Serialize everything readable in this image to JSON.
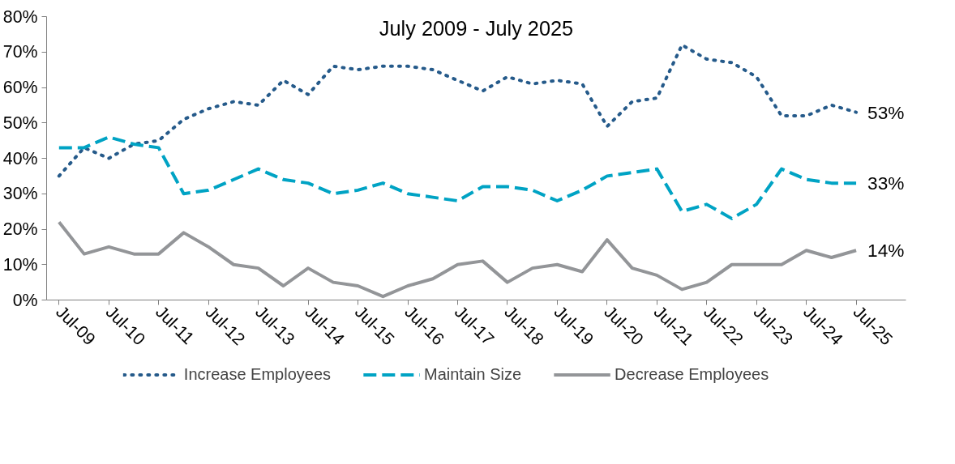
{
  "chart_data": {
    "type": "line",
    "title": "July 2009 - July 2025",
    "x": [
      "2009-07",
      "2010-01",
      "2010-07",
      "2011-01",
      "2011-07",
      "2012-01",
      "2012-07",
      "2013-01",
      "2013-07",
      "2014-01",
      "2014-07",
      "2015-01",
      "2015-07",
      "2016-01",
      "2016-07",
      "2017-01",
      "2017-07",
      "2018-01",
      "2018-07",
      "2019-01",
      "2019-07",
      "2020-01",
      "2020-07",
      "2021-01",
      "2021-07",
      "2022-01",
      "2022-07",
      "2023-01",
      "2023-07",
      "2024-01",
      "2024-07",
      "2025-01",
      "2025-07"
    ],
    "series": [
      {
        "name": "Increase Employees",
        "color": "#255a8a",
        "line_style": "dotted",
        "values": [
          35,
          43,
          40,
          44,
          45,
          51,
          54,
          56,
          55,
          62,
          58,
          66,
          65,
          66,
          66,
          65,
          62,
          59,
          63,
          61,
          62,
          61,
          49,
          56,
          57,
          72,
          68,
          67,
          63,
          52,
          52,
          55,
          53
        ],
        "value_labels": [
          null,
          null,
          null,
          null,
          null,
          null,
          null,
          null,
          null,
          null,
          null,
          null,
          null,
          null,
          null,
          null,
          null,
          null,
          null,
          null,
          null,
          null,
          null,
          null,
          null,
          null,
          null,
          null,
          null,
          null,
          null,
          null,
          "53%"
        ]
      },
      {
        "name": "Maintain Size",
        "color": "#00a3c4",
        "line_style": "dashed",
        "values": [
          43,
          43,
          46,
          44,
          43,
          30,
          31,
          34,
          37,
          34,
          33,
          30,
          31,
          33,
          30,
          29,
          28,
          32,
          32,
          31,
          28,
          31,
          35,
          36,
          37,
          25,
          27,
          23,
          27,
          37,
          34,
          33,
          33
        ],
        "value_labels": [
          null,
          null,
          null,
          null,
          null,
          null,
          null,
          null,
          null,
          null,
          null,
          null,
          null,
          null,
          null,
          null,
          null,
          null,
          null,
          null,
          null,
          null,
          null,
          null,
          null,
          null,
          null,
          null,
          null,
          null,
          null,
          null,
          "33%"
        ]
      },
      {
        "name": "Decrease Employees",
        "color": "#939598",
        "line_style": "solid",
        "values": [
          22,
          13,
          15,
          13,
          13,
          19,
          15,
          10,
          9,
          4,
          9,
          5,
          4,
          1,
          4,
          6,
          10,
          11,
          5,
          9,
          10,
          8,
          17,
          9,
          7,
          3,
          5,
          10,
          10,
          10,
          14,
          12,
          14
        ],
        "value_labels": [
          null,
          null,
          null,
          null,
          null,
          null,
          null,
          null,
          null,
          null,
          null,
          null,
          null,
          null,
          null,
          null,
          null,
          null,
          null,
          null,
          null,
          null,
          null,
          null,
          null,
          null,
          null,
          null,
          null,
          null,
          null,
          null,
          "14%"
        ]
      }
    ],
    "xlim": [
      "2009-04",
      "2026-07"
    ],
    "xticks": [
      {
        "value": "2009-07",
        "label": "Jul-09"
      },
      {
        "value": "2010-07",
        "label": "Jul-10"
      },
      {
        "value": "2011-07",
        "label": "Jul-11"
      },
      {
        "value": "2012-07",
        "label": "Jul-12"
      },
      {
        "value": "2013-07",
        "label": "Jul-13"
      },
      {
        "value": "2014-07",
        "label": "Jul-14"
      },
      {
        "value": "2015-07",
        "label": "Jul-15"
      },
      {
        "value": "2016-07",
        "label": "Jul-16"
      },
      {
        "value": "2017-07",
        "label": "Jul-17"
      },
      {
        "value": "2018-07",
        "label": "Jul-18"
      },
      {
        "value": "2019-07",
        "label": "Jul-19"
      },
      {
        "value": "2020-07",
        "label": "Jul-20"
      },
      {
        "value": "2021-07",
        "label": "Jul-21"
      },
      {
        "value": "2022-07",
        "label": "Jul-22"
      },
      {
        "value": "2023-07",
        "label": "Jul-23"
      },
      {
        "value": "2024-07",
        "label": "Jul-24"
      },
      {
        "value": "2025-07",
        "label": "Jul-25"
      }
    ],
    "ylim": [
      0,
      80
    ],
    "yticks": [
      {
        "value": 0,
        "label": "0%"
      },
      {
        "value": 10,
        "label": "10%"
      },
      {
        "value": 20,
        "label": "20%"
      },
      {
        "value": 30,
        "label": "30%"
      },
      {
        "value": 40,
        "label": "40%"
      },
      {
        "value": 50,
        "label": "50%"
      },
      {
        "value": 60,
        "label": "60%"
      },
      {
        "value": 70,
        "label": "70%"
      },
      {
        "value": 80,
        "label": "80%"
      }
    ],
    "grid": false,
    "legend": "bottom",
    "marker": "none"
  }
}
